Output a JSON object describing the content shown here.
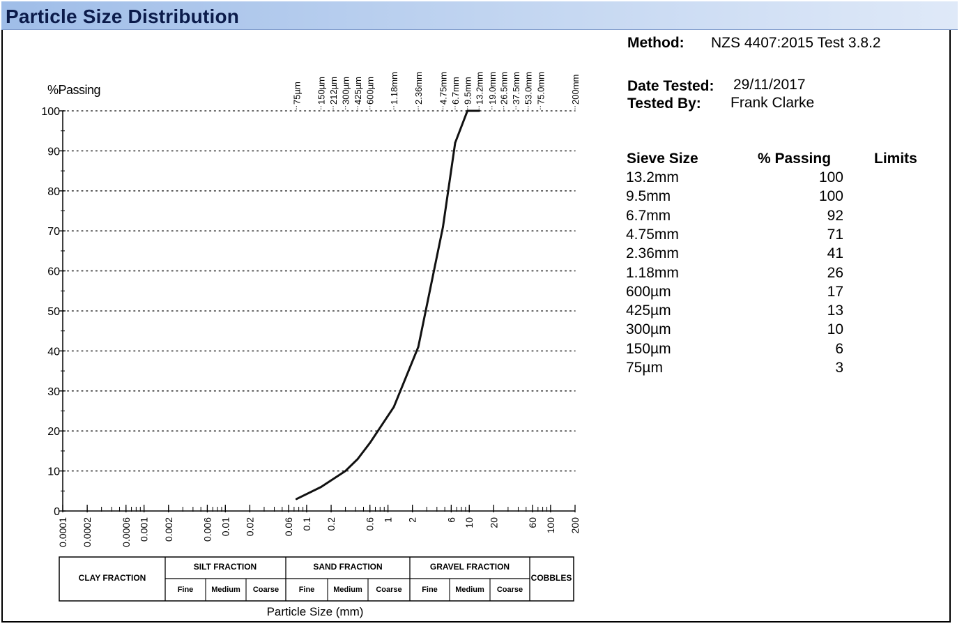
{
  "page": {
    "title": "Particle Size Distribution"
  },
  "info": {
    "method_label": "Method:",
    "method_value": "NZS 4407:2015 Test 3.8.2",
    "date_label": "Date Tested:",
    "date_value": "29/11/2017",
    "tester_label": "Tested By:",
    "tester_value": "Frank Clarke"
  },
  "results_table": {
    "headers": [
      "Sieve Size",
      "% Passing",
      "Limits"
    ],
    "rows": [
      {
        "sieve": "13.2mm",
        "passing": "100"
      },
      {
        "sieve": "9.5mm",
        "passing": "100"
      },
      {
        "sieve": "6.7mm",
        "passing": "92"
      },
      {
        "sieve": "4.75mm",
        "passing": "71"
      },
      {
        "sieve": "2.36mm",
        "passing": "41"
      },
      {
        "sieve": "1.18mm",
        "passing": "26"
      },
      {
        "sieve": "600µm",
        "passing": "17"
      },
      {
        "sieve": "425µm",
        "passing": "13"
      },
      {
        "sieve": "300µm",
        "passing": "10"
      },
      {
        "sieve": "150µm",
        "passing": "6"
      },
      {
        "sieve": "75µm",
        "passing": "3"
      }
    ]
  },
  "chart_data": {
    "type": "line",
    "ylabel": "%Passing",
    "xlabel": "Particle Size (mm)",
    "x_scale": "log",
    "xlim": [
      0.0001,
      200
    ],
    "ylim": [
      0,
      100
    ],
    "y_ticks": [
      0,
      10,
      20,
      30,
      40,
      50,
      60,
      70,
      80,
      90,
      100
    ],
    "x_tick_labels": [
      {
        "value": 0.0001,
        "label": "0.0001"
      },
      {
        "value": 0.0002,
        "label": "0.0002"
      },
      {
        "value": 0.0006,
        "label": "0.0006"
      },
      {
        "value": 0.001,
        "label": "0.001"
      },
      {
        "value": 0.002,
        "label": "0.002"
      },
      {
        "value": 0.006,
        "label": "0.006"
      },
      {
        "value": 0.01,
        "label": "0.01"
      },
      {
        "value": 0.02,
        "label": "0.02"
      },
      {
        "value": 0.06,
        "label": "0.06"
      },
      {
        "value": 0.1,
        "label": "0.1"
      },
      {
        "value": 0.2,
        "label": "0.2"
      },
      {
        "value": 0.6,
        "label": "0.6"
      },
      {
        "value": 1,
        "label": "1"
      },
      {
        "value": 2,
        "label": "2"
      },
      {
        "value": 6,
        "label": "6"
      },
      {
        "value": 10,
        "label": "10"
      },
      {
        "value": 20,
        "label": "20"
      },
      {
        "value": 60,
        "label": "60"
      },
      {
        "value": 100,
        "label": "100"
      },
      {
        "value": 200,
        "label": "200"
      }
    ],
    "sieve_labels": [
      {
        "value": 0.075,
        "label": "75µm"
      },
      {
        "value": 0.15,
        "label": "150µm"
      },
      {
        "value": 0.212,
        "label": "212µm"
      },
      {
        "value": 0.3,
        "label": "300µm"
      },
      {
        "value": 0.425,
        "label": "425µm"
      },
      {
        "value": 0.6,
        "label": "600µm"
      },
      {
        "value": 1.18,
        "label": "1.18mm"
      },
      {
        "value": 2.36,
        "label": "2.36mm"
      },
      {
        "value": 4.75,
        "label": "4.75mm"
      },
      {
        "value": 6.7,
        "label": "6.7mm"
      },
      {
        "value": 9.5,
        "label": "9.5mm"
      },
      {
        "value": 13.2,
        "label": "13.2mm"
      },
      {
        "value": 19.0,
        "label": "19.0mm"
      },
      {
        "value": 26.5,
        "label": "26.5mm"
      },
      {
        "value": 37.5,
        "label": "37.5mm"
      },
      {
        "value": 53.0,
        "label": "53.0mm"
      },
      {
        "value": 75.0,
        "label": "75.0mm"
      },
      {
        "value": 200,
        "label": "200mm"
      }
    ],
    "series": [
      {
        "x": [
          0.075,
          0.15,
          0.3,
          0.425,
          0.6,
          1.18,
          2.36,
          4.75,
          6.7,
          9.5,
          13.2
        ],
        "y": [
          3,
          6,
          10,
          13,
          17,
          26,
          41,
          71,
          92,
          100,
          100
        ]
      }
    ],
    "fractions": {
      "clay": "CLAY FRACTION",
      "silt": "SILT FRACTION",
      "sand": "SAND FRACTION",
      "gravel": "GRAVEL FRACTION",
      "cobbles": "COBBLES",
      "fine": "Fine",
      "medium": "Medium",
      "coarse": "Coarse"
    },
    "grid": true,
    "line_color": "#111111"
  }
}
